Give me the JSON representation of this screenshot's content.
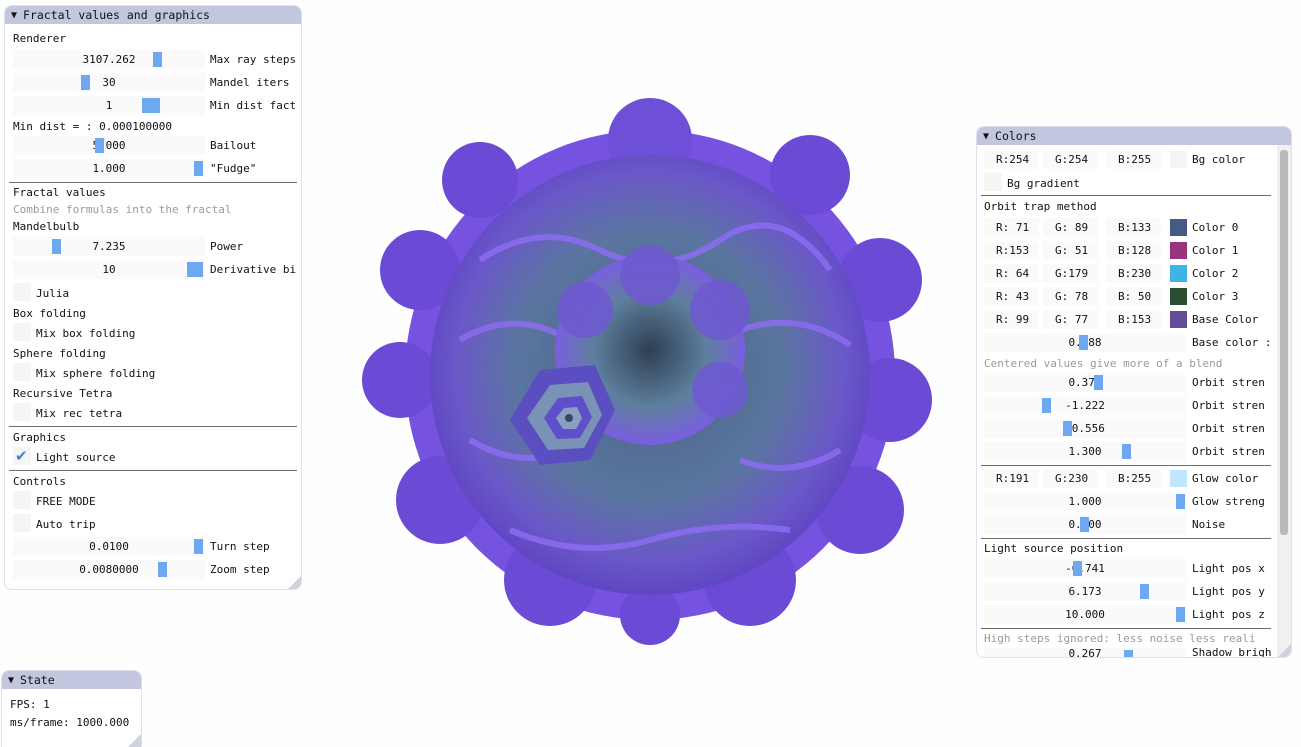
{
  "left_panel": {
    "title": "Fractal values and graphics",
    "renderer_header": "Renderer",
    "max_ray_steps": {
      "value": "3107.262",
      "label": "Max ray steps"
    },
    "mandel_iters": {
      "value": "30",
      "label": "Mandel iters"
    },
    "min_dist_factor": {
      "value": "1",
      "label": "Min dist fact"
    },
    "min_dist_text": "Min dist = : 0.000100000",
    "bailout": {
      "value": "5.000",
      "label": "Bailout"
    },
    "fudge": {
      "value": "1.000",
      "label": "\"Fudge\""
    },
    "fractal_values_header": "Fractal values",
    "combine_hint": "Combine formulas into the fractal",
    "mandelbulb_header": "Mandelbulb",
    "power": {
      "value": "7.235",
      "label": "Power"
    },
    "derivative": {
      "value": "10",
      "label": "Derivative bi"
    },
    "julia_label": "Julia",
    "box_folding_header": "Box folding",
    "mix_box_folding_label": "Mix box folding",
    "sphere_folding_header": "Sphere folding",
    "mix_sphere_folding_label": "Mix sphere folding",
    "recursive_tetra_header": "Recursive Tetra",
    "mix_rec_tetra_label": "Mix rec tetra",
    "graphics_header": "Graphics",
    "light_source_label": "Light source",
    "controls_header": "Controls",
    "free_mode_label": "FREE MODE",
    "auto_trip_label": "Auto trip",
    "turn_step": {
      "value": "0.0100",
      "label": "Turn step"
    },
    "zoom_step": {
      "value": "0.0080000",
      "label": "Zoom step"
    }
  },
  "colors_panel": {
    "title": "Colors",
    "bg_color": {
      "r": "R:254",
      "g": "G:254",
      "b": "B:255",
      "label": "Bg color",
      "swatch": "#fefeff"
    },
    "bg_gradient_label": "Bg gradient",
    "orbit_trap_header": "Orbit trap method",
    "colors": [
      {
        "r": "R: 71",
        "g": "G: 89",
        "b": "B:133",
        "label": "Color 0",
        "swatch": "#475985"
      },
      {
        "r": "R:153",
        "g": "G: 51",
        "b": "B:128",
        "label": "Color 1",
        "swatch": "#993380"
      },
      {
        "r": "R: 64",
        "g": "G:179",
        "b": "B:230",
        "label": "Color 2",
        "swatch": "#40b3e6"
      },
      {
        "r": "R: 43",
        "g": "G: 78",
        "b": "B: 50",
        "label": "Color 3",
        "swatch": "#2b4e32"
      },
      {
        "r": "R: 99",
        "g": "G: 77",
        "b": "B:153",
        "label": "Base Color",
        "swatch": "#634d99"
      }
    ],
    "base_color_strength": {
      "value": "0.488",
      "label": "Base color :"
    },
    "blend_hint": "Centered values give more of a blend",
    "orbit_strengths": [
      {
        "value": "0.370",
        "label": "Orbit stren"
      },
      {
        "value": "-1.222",
        "label": "Orbit stren"
      },
      {
        "value": "-0.556",
        "label": "Orbit stren"
      },
      {
        "value": "1.300",
        "label": "Orbit stren"
      }
    ],
    "glow_color": {
      "r": "R:191",
      "g": "G:230",
      "b": "B:255",
      "label": "Glow color",
      "swatch": "#bfe6ff"
    },
    "glow_strength": {
      "value": "1.000",
      "label": "Glow streng"
    },
    "noise": {
      "value": "0.500",
      "label": "Noise"
    },
    "light_source_header": "Light source position",
    "light_pos_x": {
      "value": "-0.741",
      "label": "Light pos x"
    },
    "light_pos_y": {
      "value": "6.173",
      "label": "Light pos y"
    },
    "light_pos_z": {
      "value": "10.000",
      "label": "Light pos z"
    },
    "high_steps_hint": "High steps ignored: less noise less reali",
    "shadow_partial": {
      "value": "0.267",
      "label": "Shadow brigh"
    }
  },
  "state_panel": {
    "title": "State",
    "fps": "FPS: 1",
    "ms_frame": "ms/frame: 1000.000"
  },
  "icons": {
    "collapse": "▼",
    "check": "✔"
  },
  "colors_theme": {
    "titlebar": "#c3c6df",
    "accent": "#6fa8f2",
    "fractal_purple": "#7f5ce6",
    "fractal_blue": "#6f8fb0"
  }
}
